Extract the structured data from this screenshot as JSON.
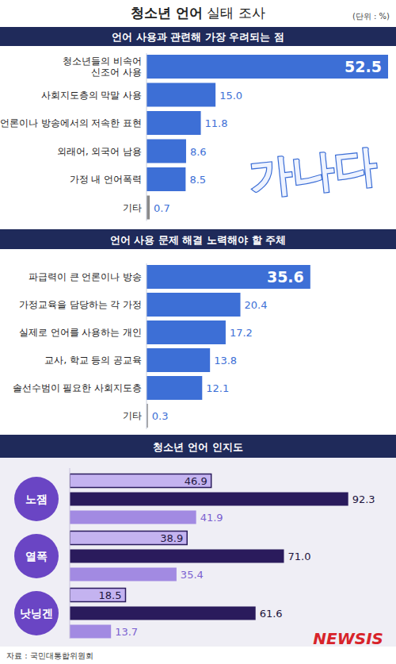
{
  "header": {
    "title": "청소년 언어 실태 조사",
    "unit": "(단위 : %)"
  },
  "chart_data": [
    {
      "type": "bar",
      "orientation": "horizontal",
      "title": "언어 사용과 관련해 가장 우려되는 점",
      "annotations": [
        "가나다"
      ],
      "categories": [
        "청소년들의 비속어\n신조어 사용",
        "사회지도층의 막말 사용",
        "언론이나 방송에서의 저속한 표현",
        "외래어, 외국어 남용",
        "가정 내 언어폭력",
        "기타"
      ],
      "values": [
        52.5,
        15,
        11.8,
        8.6,
        8.5,
        0.7
      ],
      "value_labels": [
        "52.5",
        "15.0",
        "11.8",
        "8.6",
        "8.5",
        "0.7"
      ],
      "colors": [
        "#3d6fd6",
        "#3d6fd6",
        "#3d6fd6",
        "#3d6fd6",
        "#3d6fd6",
        "#8a8a8a"
      ],
      "xlim": [
        0,
        52.5
      ],
      "data_labels": true,
      "tick_labels": "y"
    },
    {
      "type": "bar",
      "orientation": "horizontal",
      "title": "언어 사용 문제 해결 노력해야 할 주체",
      "categories": [
        "파급력이 큰 언론이나 방송",
        "가정교육을 담당하는 각 가정",
        "실제로 언어를 사용하는 개인",
        "교사, 학교 등의 공교육",
        "솔선수범이 필요한 사회지도층",
        "기타"
      ],
      "values": [
        35.6,
        20.4,
        17.2,
        13.8,
        12.1,
        0.3
      ],
      "colors": [
        "#3d6fd6",
        "#3d6fd6",
        "#3d6fd6",
        "#3d6fd6",
        "#3d6fd6",
        "#8a8a8a"
      ],
      "xlim": [
        0,
        52.5
      ],
      "data_labels": true,
      "tick_labels": "y"
    },
    {
      "type": "bar",
      "orientation": "horizontal",
      "title": "청소년 언어 인지도",
      "categories": [
        "노잼",
        "열폭",
        "낫닝겐"
      ],
      "series": [
        {
          "color": "#c4b3f0",
          "values": [
            46.9,
            38.9,
            18.5
          ]
        },
        {
          "color": "#2a1b5c",
          "values": [
            92.3,
            71,
            61.6
          ],
          "value_labels": [
            "92.3",
            "71.0",
            "61.6"
          ]
        },
        {
          "color": "#a28ae2",
          "values": [
            41.9,
            35.4,
            13.7
          ]
        }
      ],
      "xlim": [
        0,
        100
      ],
      "data_labels": true,
      "tick_labels": "y"
    }
  ],
  "footer": {
    "source": "자료 : 국민대통합위원회",
    "logo": "NEWSIS"
  }
}
